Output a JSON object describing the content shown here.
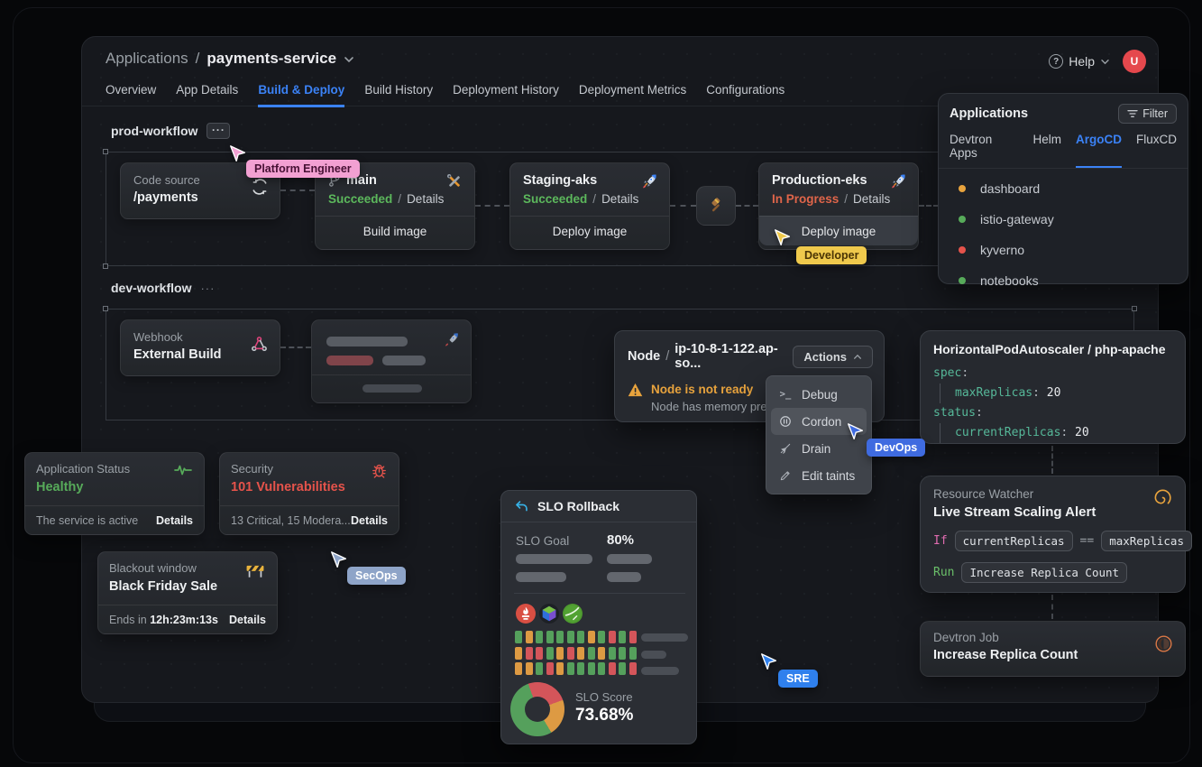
{
  "header": {
    "breadcrumb": {
      "section": "Applications",
      "separator": "/",
      "app": "payments-service"
    },
    "help_label": "Help",
    "avatar_initial": "U",
    "tabs": [
      "Overview",
      "App Details",
      "Build & Deploy",
      "Build History",
      "Deployment History",
      "Deployment Metrics",
      "Configurations"
    ]
  },
  "icons": {
    "ellipsis": "···",
    "help_mark": "?",
    "terminal": ">_"
  },
  "prod_workflow": {
    "label": "prod-workflow",
    "code_source": {
      "title": "Code source",
      "path": "/payments"
    },
    "build": {
      "branch": "main",
      "status": "Succeeded",
      "separator": "/",
      "details": "Details",
      "action": "Build image"
    },
    "staging": {
      "name": "Staging-aks",
      "status": "Succeeded",
      "separator": "/",
      "details": "Details",
      "action": "Deploy image"
    },
    "production": {
      "name": "Production-eks",
      "status": "In Progress",
      "separator": "/",
      "details": "Details",
      "action": "Deploy image"
    }
  },
  "dev_workflow": {
    "label": "dev-workflow",
    "webhook": {
      "title": "Webhook",
      "subtitle": "External Build"
    }
  },
  "apps_panel": {
    "title": "Applications",
    "filter_label": "Filter",
    "tabs": [
      "Devtron Apps",
      "Helm",
      "ArgoCD",
      "FluxCD"
    ],
    "items": [
      {
        "name": "dashboard",
        "status_color": "#e8a33d"
      },
      {
        "name": "istio-gateway",
        "status_color": "#57ab5a"
      },
      {
        "name": "kyverno",
        "status_color": "#e5534b"
      },
      {
        "name": "notebooks",
        "status_color": "#57ab5a"
      }
    ]
  },
  "node_panel": {
    "kind": "Node",
    "separator": "/",
    "name": "ip-10-8-1-122.ap-so...",
    "actions_label": "Actions",
    "warning_title": "Node is not ready",
    "warning_subtitle": "Node has memory pre...",
    "menu": [
      {
        "label": "Debug"
      },
      {
        "label": "Cordon"
      },
      {
        "label": "Drain"
      },
      {
        "label": "Edit taints"
      }
    ]
  },
  "hpa_panel": {
    "title": "HorizontalPodAutoscaler / php-apache",
    "rows": [
      {
        "key": "spec",
        "sep": ":",
        "value": ""
      },
      {
        "key": "maxReplicas",
        "sep": ":",
        "value": " 20"
      },
      {
        "key": "status",
        "sep": ":",
        "value": ""
      },
      {
        "key": "currentReplicas",
        "sep": ":",
        "value": " 20"
      }
    ]
  },
  "app_status_card": {
    "title": "Application Status",
    "value": "Healthy",
    "footer_text": "The service is active",
    "details_label": "Details"
  },
  "security_card": {
    "title": "Security",
    "value": "101 Vulnerabilities",
    "footer_text": "13 Critical, 15 Modera...",
    "details_label": "Details"
  },
  "blackout_card": {
    "title": "Blackout window",
    "value": "Black Friday Sale",
    "footer_prefix": "Ends in",
    "footer_time": "12h:23m:13s",
    "details_label": "Details"
  },
  "slo_panel": {
    "title": "SLO Rollback",
    "goal_label": "SLO Goal",
    "goal_value": "80%",
    "score_label": "SLO Score",
    "score_value": "73.68%",
    "grid": {
      "cell_colors": {
        "g": "#55a05c",
        "o": "#dd9a43",
        "r": "#d4555a"
      },
      "rows": [
        [
          "g",
          "o",
          "g",
          "g",
          "g",
          "g",
          "g",
          "o",
          "g",
          "r",
          "g",
          "r"
        ],
        [
          "o",
          "r",
          "r",
          "g",
          "o",
          "r",
          "o",
          "g",
          "o",
          "g",
          "g",
          "g"
        ],
        [
          "o",
          "o",
          "g",
          "r",
          "o",
          "g",
          "g",
          "g",
          "g",
          "r",
          "g",
          "r"
        ]
      ]
    },
    "donut": {
      "from_deg": -20,
      "segments": [
        {
          "color": "#d4555a",
          "pct": 25
        },
        {
          "color": "#dd9a43",
          "pct": 22
        },
        {
          "color": "#55a05c",
          "pct": 53
        }
      ]
    }
  },
  "resource_watcher": {
    "title": "Resource Watcher",
    "subtitle": "Live Stream Scaling Alert",
    "if_keyword": "If",
    "left_operand": "currentReplicas",
    "operator": "==",
    "right_operand": "maxReplicas",
    "run_keyword": "Run",
    "action": "Increase Replica Count"
  },
  "devtron_job": {
    "title": "Devtron Job",
    "subtitle": "Increase Replica Count"
  },
  "cursors": [
    {
      "label": "Platform Engineer",
      "color": "#f2a0d2",
      "text_color": "#471034"
    },
    {
      "label": "Developer",
      "color": "#efc94c",
      "text_color": "#4a3404"
    },
    {
      "label": "SecOps",
      "color": "#8ea4c8",
      "text_color": "#ffffff"
    },
    {
      "label": "DevOps",
      "color": "#3f6be0",
      "text_color": "#ffffff"
    },
    {
      "label": "SRE",
      "color": "#2f80ed",
      "text_color": "#ffffff"
    }
  ]
}
